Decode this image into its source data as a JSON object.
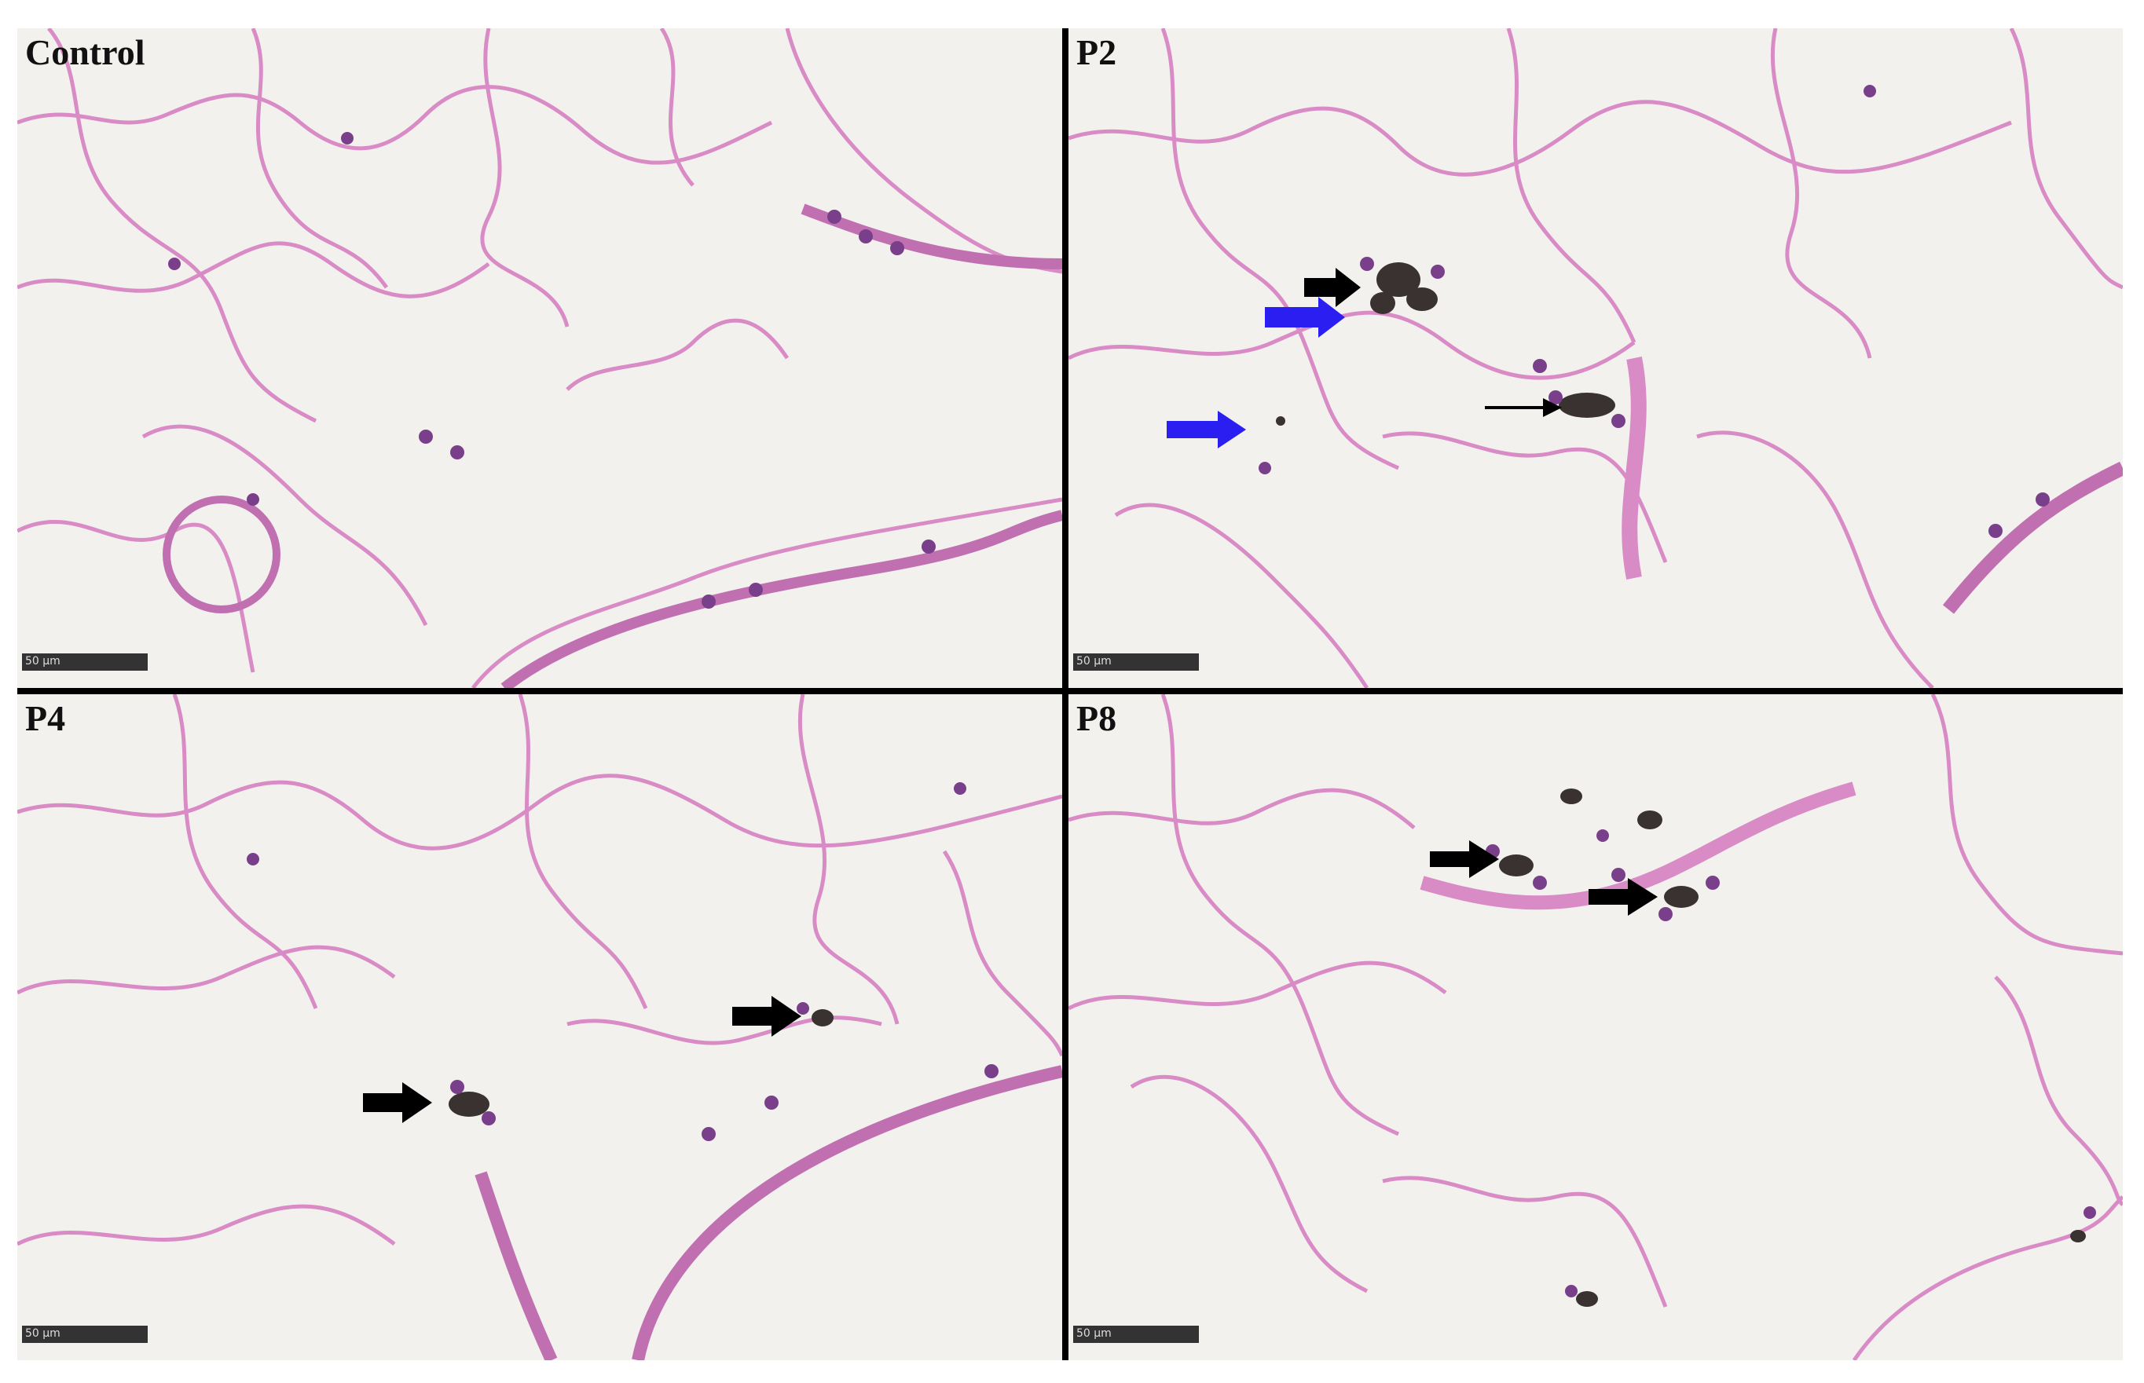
{
  "panels": {
    "control": {
      "label": "Control",
      "scale": "50 µm"
    },
    "p2": {
      "label": "P2",
      "scale": "50 µm"
    },
    "p4": {
      "label": "P4",
      "scale": "50 µm"
    },
    "p8": {
      "label": "P8",
      "scale": "50 µm"
    }
  },
  "colors": {
    "background": "#f3f1ee",
    "tissue": "#d98bc6",
    "nuclei": "#7a3f8a",
    "particles": "#3a3230",
    "black_arrow": "#000000",
    "blue_arrow": "#2a1ef0"
  }
}
